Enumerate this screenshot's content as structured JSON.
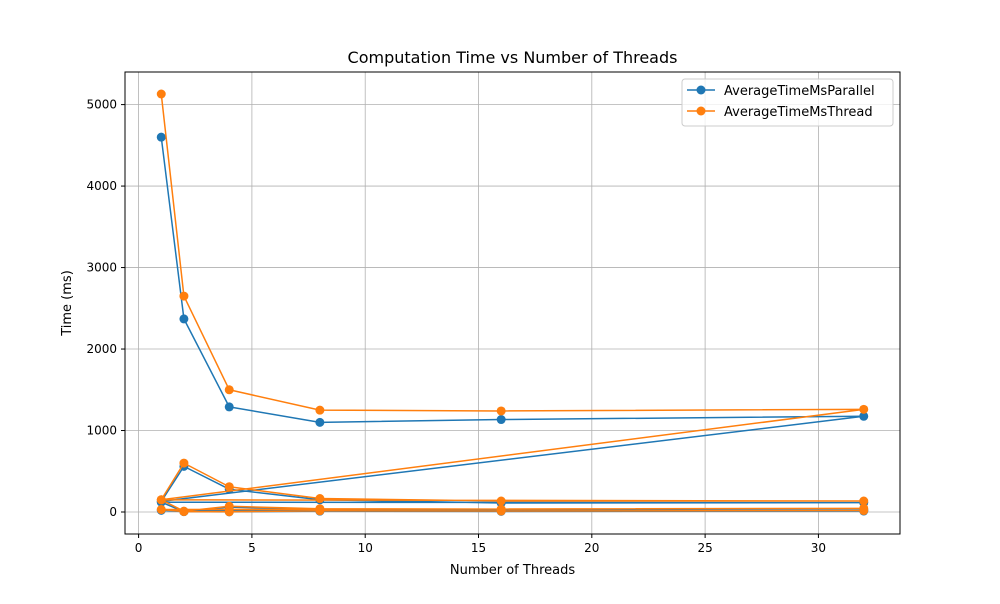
{
  "chart_data": {
    "type": "line",
    "title": "Computation Time vs Number of Threads",
    "xlabel": "Number of Threads",
    "ylabel": "Time (ms)",
    "xlim": [
      -0.6,
      33.6
    ],
    "ylim": [
      -270,
      5400
    ],
    "xticks": [
      0,
      5,
      10,
      15,
      20,
      25,
      30
    ],
    "yticks": [
      0,
      1000,
      2000,
      3000,
      4000,
      5000
    ],
    "grid": true,
    "legend_position": "top-right",
    "x": [
      1,
      2,
      4,
      8,
      16,
      32,
      1,
      2,
      4,
      8,
      16,
      32,
      1,
      2,
      4,
      8,
      16,
      32,
      1,
      2,
      4,
      8,
      16,
      32
    ],
    "series": [
      {
        "name": "AverageTimeMsParallel",
        "color": "#1f77b4",
        "values": [
          4600,
          2370,
          1290,
          1100,
          1135,
          1175,
          130,
          560,
          280,
          150,
          110,
          115,
          120,
          5,
          60,
          30,
          20,
          25,
          20,
          5,
          2,
          10,
          8,
          12
        ]
      },
      {
        "name": "AverageTimeMsThread",
        "color": "#ff7f0e",
        "values": [
          5130,
          2650,
          1500,
          1250,
          1240,
          1260,
          150,
          600,
          310,
          165,
          135,
          135,
          150,
          10,
          70,
          40,
          35,
          45,
          30,
          5,
          3,
          15,
          12,
          18
        ]
      }
    ]
  }
}
